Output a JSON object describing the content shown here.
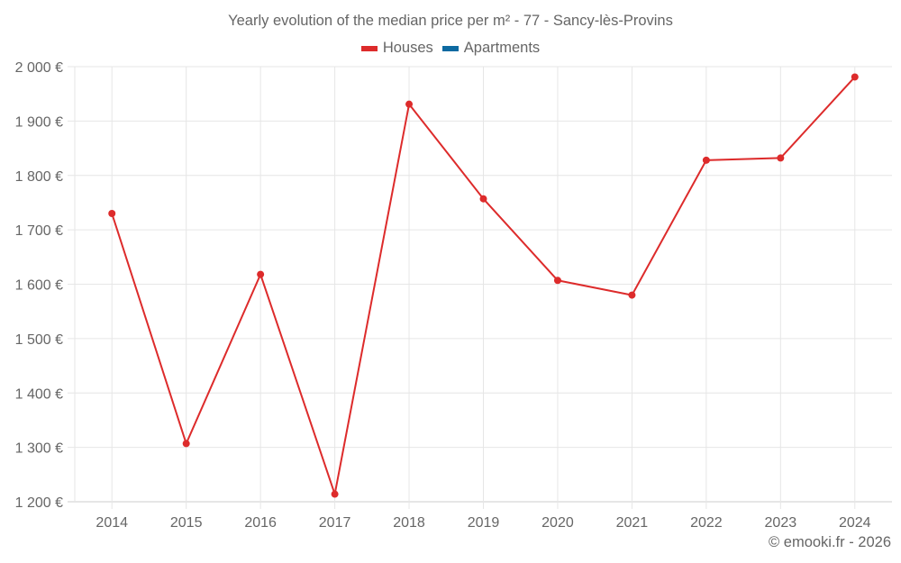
{
  "header": {
    "title": "Yearly evolution of the median price per m² - 77 - Sancy-lès-Provins"
  },
  "legend": [
    {
      "label": "Houses",
      "color": "#dd2b2b"
    },
    {
      "label": "Apartments",
      "color": "#0d6aa1"
    }
  ],
  "footer": {
    "credit": "© emooki.fr - 2026"
  },
  "axes": {
    "y_ticks": [
      "2 000 €",
      "1 900 €",
      "1 800 €",
      "1 700 €",
      "1 600 €",
      "1 500 €",
      "1 400 €",
      "1 300 €",
      "1 200 €"
    ],
    "x_ticks": [
      "2014",
      "2015",
      "2016",
      "2017",
      "2018",
      "2019",
      "2020",
      "2021",
      "2022",
      "2023",
      "2024"
    ]
  },
  "chart_data": {
    "type": "line",
    "title": "Yearly evolution of the median price per m² - 77 - Sancy-lès-Provins",
    "xlabel": "",
    "ylabel": "",
    "categories": [
      "2014",
      "2015",
      "2016",
      "2017",
      "2018",
      "2019",
      "2020",
      "2021",
      "2022",
      "2023",
      "2024"
    ],
    "series": [
      {
        "name": "Houses",
        "color": "#dd2b2b",
        "values": [
          1730,
          1307,
          1618,
          1214,
          1931,
          1757,
          1607,
          1580,
          1828,
          1832,
          1981
        ]
      },
      {
        "name": "Apartments",
        "color": "#0d6aa1",
        "values": []
      }
    ],
    "ylim": [
      1200,
      2000
    ],
    "y_tick_step": 100,
    "grid": true,
    "legend_position": "top"
  }
}
